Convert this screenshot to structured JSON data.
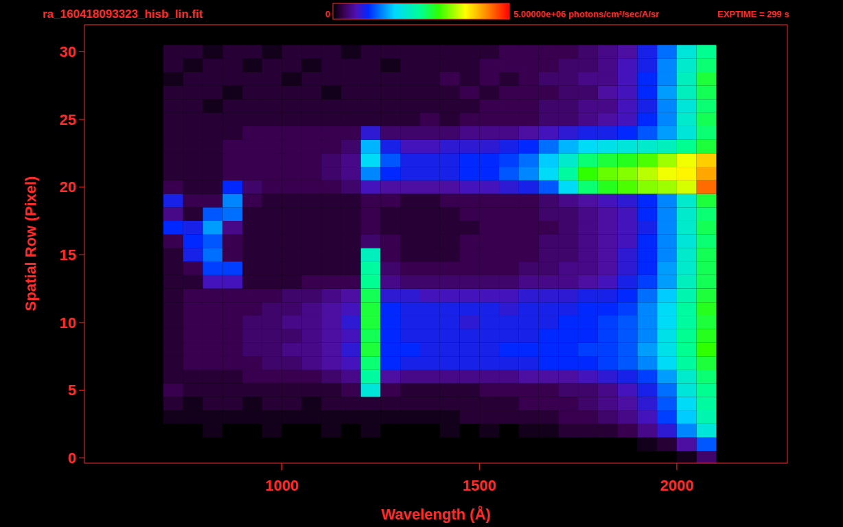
{
  "chart_data": {
    "type": "heatmap",
    "title": "ra_160418093323_hisb_lin.fit",
    "subtitle": "EXPTIME = 299 s",
    "x_label": "Wavelength (Å)",
    "y_label": "Spatial Row (Pixel)",
    "xlim": [
      500,
      2280
    ],
    "xticks": [
      1000,
      1500,
      2000
    ],
    "ylim": [
      -0.4,
      32
    ],
    "yticks": [
      0,
      5,
      10,
      15,
      20,
      25,
      30
    ],
    "x_edges": [
      700,
      750,
      800,
      850,
      900,
      950,
      1000,
      1050,
      1100,
      1150,
      1200,
      1250,
      1300,
      1350,
      1400,
      1450,
      1500,
      1550,
      1600,
      1650,
      1700,
      1750,
      1800,
      1850,
      1900,
      1950,
      2000,
      2050,
      2100
    ],
    "rows": [
      0,
      1,
      2,
      3,
      4,
      5,
      6,
      7,
      8,
      9,
      10,
      11,
      12,
      13,
      14,
      15,
      16,
      17,
      18,
      19,
      20,
      21,
      22,
      23,
      24,
      25,
      26,
      27,
      28,
      29,
      30
    ],
    "cells": [
      [
        0,
        0,
        0,
        0,
        0,
        0,
        0,
        0,
        0,
        0,
        0,
        0,
        0,
        0,
        0,
        0,
        0,
        0,
        0,
        0,
        0,
        0,
        0,
        0,
        0,
        0,
        100000.0,
        400000.0
      ],
      [
        0,
        0,
        0,
        0,
        0,
        0,
        0,
        0,
        0,
        0,
        0,
        0,
        0,
        0,
        0,
        0,
        0,
        0,
        0,
        0,
        0,
        0,
        0,
        0,
        100000.0,
        200000.0,
        600000.0,
        1200000.0
      ],
      [
        0,
        0,
        100000.0,
        0,
        0,
        100000.0,
        0,
        0,
        100000.0,
        0,
        100000.0,
        0,
        0,
        0,
        100000.0,
        0,
        100000.0,
        0,
        100000.0,
        100000.0,
        200000.0,
        200000.0,
        200000.0,
        300000.0,
        500000.0,
        800000.0,
        1400000.0,
        2000000.0
      ],
      [
        100000.0,
        100000.0,
        100000.0,
        100000.0,
        100000.0,
        100000.0,
        100000.0,
        100000.0,
        100000.0,
        100000.0,
        100000.0,
        100000.0,
        100000.0,
        100000.0,
        100000.0,
        200000.0,
        200000.0,
        200000.0,
        200000.0,
        200000.0,
        300000.0,
        300000.0,
        400000.0,
        500000.0,
        700000.0,
        1100000.0,
        1700000.0,
        2300000.0
      ],
      [
        200000.0,
        100000.0,
        200000.0,
        200000.0,
        100000.0,
        200000.0,
        200000.0,
        100000.0,
        200000.0,
        200000.0,
        200000.0,
        200000.0,
        200000.0,
        200000.0,
        200000.0,
        200000.0,
        200000.0,
        200000.0,
        300000.0,
        300000.0,
        300000.0,
        400000.0,
        500000.0,
        600000.0,
        800000.0,
        1200000.0,
        1800000.0,
        2400000.0
      ],
      [
        300000.0,
        200000.0,
        200000.0,
        200000.0,
        200000.0,
        200000.0,
        200000.0,
        200000.0,
        200000.0,
        300000.0,
        2000000.0,
        300000.0,
        200000.0,
        200000.0,
        200000.0,
        200000.0,
        300000.0,
        300000.0,
        300000.0,
        300000.0,
        400000.0,
        400000.0,
        500000.0,
        700000.0,
        900000.0,
        1300000.0,
        2000000.0,
        2500000.0
      ],
      [
        200000.0,
        200000.0,
        200000.0,
        200000.0,
        300000.0,
        300000.0,
        300000.0,
        300000.0,
        400000.0,
        500000.0,
        2400000.0,
        600000.0,
        500000.0,
        500000.0,
        500000.0,
        500000.0,
        500000.0,
        500000.0,
        600000.0,
        600000.0,
        600000.0,
        700000.0,
        800000.0,
        900000.0,
        1100000.0,
        1500000.0,
        2100000.0,
        2600000.0
      ],
      [
        200000.0,
        300000.0,
        300000.0,
        300000.0,
        300000.0,
        400000.0,
        400000.0,
        500000.0,
        600000.0,
        700000.0,
        2600000.0,
        1000000.0,
        900000.0,
        900000.0,
        900000.0,
        900000.0,
        900000.0,
        900000.0,
        900000.0,
        1000000.0,
        1000000.0,
        1000000.0,
        1100000.0,
        1200000.0,
        1400000.0,
        1800000.0,
        2400000.0,
        2800000.0
      ],
      [
        200000.0,
        300000.0,
        300000.0,
        300000.0,
        400000.0,
        400000.0,
        500000.0,
        500000.0,
        600000.0,
        800000.0,
        2800000.0,
        1000000.0,
        1000000.0,
        900000.0,
        900000.0,
        900000.0,
        900000.0,
        1000000.0,
        1000000.0,
        1000000.0,
        1000000.0,
        1100000.0,
        1100000.0,
        1200000.0,
        1500000.0,
        1900000.0,
        2500000.0,
        3000000.0
      ],
      [
        200000.0,
        300000.0,
        300000.0,
        300000.0,
        400000.0,
        400000.0,
        400000.0,
        500000.0,
        600000.0,
        700000.0,
        2700000.0,
        1000000.0,
        900000.0,
        900000.0,
        900000.0,
        900000.0,
        900000.0,
        900000.0,
        900000.0,
        1000000.0,
        1000000.0,
        1000000.0,
        1100000.0,
        1200000.0,
        1400000.0,
        1900000.0,
        2500000.0,
        2900000.0
      ],
      [
        200000.0,
        300000.0,
        300000.0,
        300000.0,
        400000.0,
        400000.0,
        500000.0,
        500000.0,
        600000.0,
        800000.0,
        2800000.0,
        1000000.0,
        900000.0,
        900000.0,
        900000.0,
        800000.0,
        900000.0,
        900000.0,
        900000.0,
        900000.0,
        1000000.0,
        1000000.0,
        1100000.0,
        1200000.0,
        1400000.0,
        1800000.0,
        2400000.0,
        2800000.0
      ],
      [
        200000.0,
        300000.0,
        300000.0,
        300000.0,
        300000.0,
        400000.0,
        400000.0,
        500000.0,
        600000.0,
        700000.0,
        2800000.0,
        1000000.0,
        900000.0,
        900000.0,
        900000.0,
        900000.0,
        900000.0,
        800000.0,
        900000.0,
        900000.0,
        900000.0,
        1000000.0,
        1000000.0,
        1100000.0,
        1400000.0,
        1800000.0,
        2400000.0,
        2900000.0
      ],
      [
        200000.0,
        300000.0,
        300000.0,
        300000.0,
        300000.0,
        300000.0,
        400000.0,
        400000.0,
        500000.0,
        600000.0,
        2700000.0,
        800000.0,
        800000.0,
        700000.0,
        700000.0,
        700000.0,
        700000.0,
        700000.0,
        800000.0,
        800000.0,
        800000.0,
        900000.0,
        900000.0,
        1000000.0,
        1300000.0,
        1700000.0,
        2300000.0,
        2800000.0
      ],
      [
        200000.0,
        200000.0,
        700000.0,
        700000.0,
        200000.0,
        200000.0,
        200000.0,
        300000.0,
        300000.0,
        300000.0,
        2500000.0,
        500000.0,
        400000.0,
        400000.0,
        400000.0,
        400000.0,
        400000.0,
        400000.0,
        500000.0,
        500000.0,
        500000.0,
        600000.0,
        700000.0,
        900000.0,
        1100000.0,
        1500000.0,
        2200000.0,
        2700000.0
      ],
      [
        200000.0,
        300000.0,
        1100000.0,
        1100000.0,
        200000.0,
        200000.0,
        200000.0,
        200000.0,
        200000.0,
        200000.0,
        2400000.0,
        400000.0,
        300000.0,
        300000.0,
        300000.0,
        300000.0,
        300000.0,
        300000.0,
        400000.0,
        400000.0,
        500000.0,
        500000.0,
        600000.0,
        800000.0,
        1000000.0,
        1500000.0,
        2100000.0,
        2700000.0
      ],
      [
        200000.0,
        900000.0,
        1300000.0,
        300000.0,
        200000.0,
        200000.0,
        200000.0,
        200000.0,
        200000.0,
        200000.0,
        2200000.0,
        300000.0,
        200000.0,
        200000.0,
        200000.0,
        300000.0,
        300000.0,
        300000.0,
        300000.0,
        400000.0,
        400000.0,
        500000.0,
        600000.0,
        800000.0,
        1000000.0,
        1400000.0,
        2100000.0,
        2700000.0
      ],
      [
        300000.0,
        1000000.0,
        1200000.0,
        300000.0,
        200000.0,
        200000.0,
        200000.0,
        200000.0,
        200000.0,
        200000.0,
        400000.0,
        300000.0,
        200000.0,
        200000.0,
        200000.0,
        300000.0,
        300000.0,
        300000.0,
        300000.0,
        400000.0,
        400000.0,
        500000.0,
        600000.0,
        700000.0,
        1000000.0,
        1400000.0,
        2000000.0,
        2600000.0
      ],
      [
        1000000.0,
        900000.0,
        1500000.0,
        500000.0,
        200000.0,
        200000.0,
        200000.0,
        200000.0,
        200000.0,
        200000.0,
        300000.0,
        200000.0,
        200000.0,
        200000.0,
        200000.0,
        200000.0,
        300000.0,
        300000.0,
        300000.0,
        300000.0,
        400000.0,
        500000.0,
        600000.0,
        700000.0,
        900000.0,
        1400000.0,
        2100000.0,
        2700000.0
      ],
      [
        500000.0,
        200000.0,
        1200000.0,
        1300000.0,
        200000.0,
        200000.0,
        200000.0,
        200000.0,
        200000.0,
        200000.0,
        300000.0,
        200000.0,
        200000.0,
        200000.0,
        200000.0,
        300000.0,
        300000.0,
        300000.0,
        300000.0,
        400000.0,
        400000.0,
        500000.0,
        600000.0,
        700000.0,
        1000000.0,
        1400000.0,
        2100000.0,
        2600000.0
      ],
      [
        900000.0,
        300000.0,
        300000.0,
        1400000.0,
        300000.0,
        200000.0,
        200000.0,
        200000.0,
        200000.0,
        200000.0,
        300000.0,
        300000.0,
        200000.0,
        200000.0,
        300000.0,
        300000.0,
        300000.0,
        300000.0,
        300000.0,
        400000.0,
        500000.0,
        600000.0,
        700000.0,
        800000.0,
        1000000.0,
        1400000.0,
        2100000.0,
        2800000.0
      ],
      [
        300000.0,
        200000.0,
        200000.0,
        1000000.0,
        400000.0,
        300000.0,
        300000.0,
        300000.0,
        300000.0,
        400000.0,
        700000.0,
        600000.0,
        600000.0,
        600000.0,
        600000.0,
        700000.0,
        700000.0,
        800000.0,
        900000.0,
        1200000.0,
        1800000.0,
        2600000.0,
        2900000.0,
        3100000.0,
        3300000.0,
        3400000.0,
        3600000.0,
        4500000.0
      ],
      [
        200000.0,
        200000.0,
        200000.0,
        300000.0,
        300000.0,
        300000.0,
        300000.0,
        300000.0,
        400000.0,
        500000.0,
        1400000.0,
        1000000.0,
        900000.0,
        900000.0,
        900000.0,
        1000000.0,
        1000000.0,
        1200000.0,
        1400000.0,
        1800000.0,
        2400000.0,
        3000000.0,
        3200000.0,
        3300000.0,
        3500000.0,
        3700000.0,
        3800000.0,
        4200000.0
      ],
      [
        200000.0,
        200000.0,
        200000.0,
        300000.0,
        300000.0,
        300000.0,
        300000.0,
        300000.0,
        400000.0,
        500000.0,
        1800000.0,
        1200000.0,
        900000.0,
        900000.0,
        900000.0,
        1000000.0,
        1000000.0,
        1100000.0,
        1300000.0,
        1700000.0,
        2100000.0,
        2600000.0,
        2800000.0,
        2900000.0,
        3100000.0,
        3400000.0,
        3700000.0,
        4000000.0
      ],
      [
        200000.0,
        200000.0,
        200000.0,
        300000.0,
        300000.0,
        300000.0,
        300000.0,
        300000.0,
        300000.0,
        400000.0,
        1600000.0,
        900000.0,
        700000.0,
        700000.0,
        800000.0,
        800000.0,
        800000.0,
        900000.0,
        1000000.0,
        1300000.0,
        1600000.0,
        1800000.0,
        1900000.0,
        2000000.0,
        2100000.0,
        2200000.0,
        2500000.0,
        2800000.0
      ],
      [
        200000.0,
        200000.0,
        200000.0,
        200000.0,
        300000.0,
        300000.0,
        300000.0,
        300000.0,
        300000.0,
        300000.0,
        800000.0,
        400000.0,
        400000.0,
        400000.0,
        400000.0,
        500000.0,
        500000.0,
        500000.0,
        600000.0,
        700000.0,
        800000.0,
        900000.0,
        900000.0,
        1000000.0,
        1200000.0,
        1500000.0,
        2000000.0,
        2600000.0
      ],
      [
        200000.0,
        200000.0,
        200000.0,
        200000.0,
        200000.0,
        200000.0,
        200000.0,
        200000.0,
        200000.0,
        200000.0,
        200000.0,
        200000.0,
        200000.0,
        300000.0,
        200000.0,
        300000.0,
        300000.0,
        300000.0,
        300000.0,
        400000.0,
        400000.0,
        500000.0,
        600000.0,
        700000.0,
        1000000.0,
        1400000.0,
        2100000.0,
        2700000.0
      ],
      [
        200000.0,
        200000.0,
        100000.0,
        200000.0,
        200000.0,
        200000.0,
        200000.0,
        200000.0,
        200000.0,
        200000.0,
        200000.0,
        200000.0,
        200000.0,
        200000.0,
        200000.0,
        200000.0,
        300000.0,
        300000.0,
        300000.0,
        400000.0,
        400000.0,
        500000.0,
        500000.0,
        700000.0,
        900000.0,
        1400000.0,
        2000000.0,
        2600000.0
      ],
      [
        200000.0,
        200000.0,
        200000.0,
        100000.0,
        200000.0,
        200000.0,
        200000.0,
        200000.0,
        100000.0,
        200000.0,
        200000.0,
        200000.0,
        200000.0,
        200000.0,
        200000.0,
        300000.0,
        200000.0,
        300000.0,
        300000.0,
        300000.0,
        400000.0,
        400000.0,
        600000.0,
        700000.0,
        1000000.0,
        1500000.0,
        2200000.0,
        2700000.0
      ],
      [
        100000.0,
        200000.0,
        200000.0,
        200000.0,
        200000.0,
        200000.0,
        100000.0,
        200000.0,
        200000.0,
        200000.0,
        200000.0,
        200000.0,
        200000.0,
        200000.0,
        300000.0,
        200000.0,
        300000.0,
        200000.0,
        300000.0,
        400000.0,
        400000.0,
        500000.0,
        500000.0,
        700000.0,
        1000000.0,
        1400000.0,
        2200000.0,
        2800000.0
      ],
      [
        200000.0,
        100000.0,
        200000.0,
        200000.0,
        100000.0,
        200000.0,
        200000.0,
        100000.0,
        200000.0,
        200000.0,
        200000.0,
        100000.0,
        200000.0,
        200000.0,
        200000.0,
        200000.0,
        300000.0,
        300000.0,
        300000.0,
        300000.0,
        400000.0,
        400000.0,
        500000.0,
        700000.0,
        900000.0,
        1400000.0,
        2100000.0,
        2600000.0
      ],
      [
        200000.0,
        200000.0,
        100000.0,
        200000.0,
        200000.0,
        100000.0,
        200000.0,
        200000.0,
        200000.0,
        100000.0,
        200000.0,
        200000.0,
        200000.0,
        200000.0,
        200000.0,
        200000.0,
        200000.0,
        300000.0,
        300000.0,
        300000.0,
        300000.0,
        400000.0,
        500000.0,
        600000.0,
        900000.0,
        1300000.0,
        2000000.0,
        2500000.0
      ]
    ],
    "colorbar": {
      "range": [
        0,
        5000000
      ],
      "ticks": [
        0,
        {
          "value": 5000000,
          "label": "5.00000e+06"
        }
      ],
      "label": "photons/cm²/sec/A/sr"
    }
  }
}
